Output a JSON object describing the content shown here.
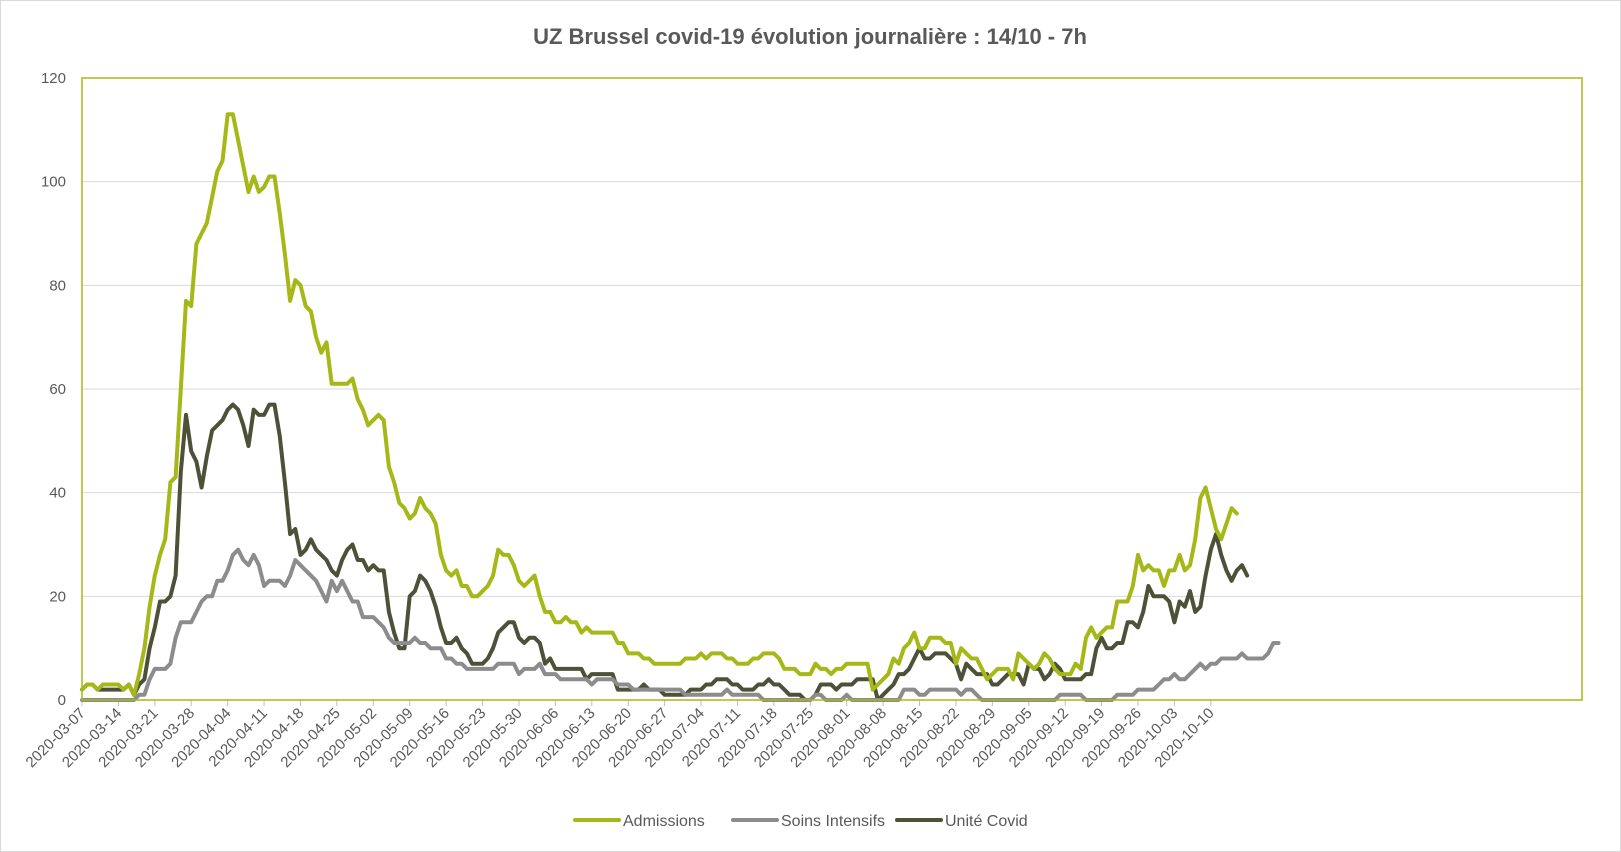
{
  "chart_data": {
    "type": "line",
    "title": "UZ Brussel covid-19 évolution journalière : 14/10 - 7h",
    "xlabel": "",
    "ylabel": "",
    "ylim": [
      0,
      120
    ],
    "yticks": [
      "0",
      "20",
      "40",
      "60",
      "80",
      "100",
      "120"
    ],
    "start_date": "2020-03-07",
    "xtick_labels": [
      "2020-03-07",
      "2020-03-14",
      "2020-03-21",
      "2020-03-28",
      "2020-04-04",
      "2020-04-11",
      "2020-04-18",
      "2020-04-25",
      "2020-05-02",
      "2020-05-09",
      "2020-05-16",
      "2020-05-23",
      "2020-05-30",
      "2020-06-06",
      "2020-06-13",
      "2020-06-20",
      "2020-06-27",
      "2020-07-04",
      "2020-07-11",
      "2020-07-18",
      "2020-07-25",
      "2020-08-01",
      "2020-08-08",
      "2020-08-15",
      "2020-08-22",
      "2020-08-29",
      "2020-09-05",
      "2020-09-12",
      "2020-09-19",
      "2020-09-26",
      "2020-10-03",
      "2020-10-10"
    ],
    "legend_position": "bottom",
    "grid": true,
    "colors": {
      "plot_border": "#a6b817",
      "grid": "#d9d9d9"
    },
    "series": [
      {
        "name": "Admissions",
        "color": "#a6b817",
        "values": [
          2,
          3,
          3,
          2,
          3,
          3,
          3,
          3,
          2,
          3,
          1,
          5,
          10,
          18,
          24,
          28,
          31,
          42,
          43,
          60,
          77,
          76,
          88,
          90,
          92,
          97,
          102,
          104,
          113,
          113,
          108,
          103,
          98,
          101,
          98,
          99,
          101,
          101,
          94,
          86,
          77,
          81,
          80,
          76,
          75,
          70,
          67,
          69,
          61,
          61,
          61,
          61,
          62,
          58,
          56,
          53,
          54,
          55,
          54,
          45,
          42,
          38,
          37,
          35,
          36,
          39,
          37,
          36,
          34,
          28,
          25,
          24,
          25,
          22,
          22,
          20,
          20,
          21,
          22,
          24,
          29,
          28,
          28,
          26,
          23,
          22,
          23,
          24,
          20,
          17,
          17,
          15,
          15,
          16,
          15,
          15,
          13,
          14,
          13,
          13,
          13,
          13,
          13,
          11,
          11,
          9,
          9,
          9,
          8,
          8,
          7,
          7,
          7,
          7,
          7,
          7,
          8,
          8,
          8,
          9,
          8,
          9,
          9,
          9,
          8,
          8,
          7,
          7,
          7,
          8,
          8,
          9,
          9,
          9,
          8,
          6,
          6,
          6,
          5,
          5,
          5,
          7,
          6,
          6,
          5,
          6,
          6,
          7,
          7,
          7,
          7,
          7,
          2,
          3,
          4,
          5,
          8,
          7,
          10,
          11,
          13,
          10,
          10,
          12,
          12,
          12,
          11,
          11,
          7,
          10,
          9,
          8,
          8,
          6,
          4,
          5,
          6,
          6,
          6,
          4,
          9,
          8,
          7,
          6,
          7,
          9,
          8,
          6,
          5,
          5,
          5,
          7,
          6,
          12,
          14,
          12,
          13,
          14,
          14,
          19,
          19,
          19,
          22,
          28,
          25,
          26,
          25,
          25,
          22,
          25,
          25,
          28,
          25,
          26,
          31,
          39,
          41,
          37,
          33,
          31,
          34,
          37,
          36
        ]
      },
      {
        "name": "Soins Intensifs",
        "color": "#8c8c8c",
        "values": [
          0,
          0,
          0,
          0,
          0,
          0,
          0,
          0,
          0,
          0,
          0,
          1,
          1,
          4,
          6,
          6,
          6,
          7,
          12,
          15,
          15,
          15,
          17,
          19,
          20,
          20,
          23,
          23,
          25,
          28,
          29,
          27,
          26,
          28,
          26,
          22,
          23,
          23,
          23,
          22,
          24,
          27,
          26,
          25,
          24,
          23,
          21,
          19,
          23,
          21,
          23,
          21,
          19,
          19,
          16,
          16,
          16,
          15,
          14,
          12,
          11,
          11,
          11,
          11,
          12,
          11,
          11,
          10,
          10,
          10,
          8,
          8,
          7,
          7,
          6,
          6,
          6,
          6,
          6,
          6,
          7,
          7,
          7,
          7,
          5,
          6,
          6,
          6,
          7,
          5,
          5,
          5,
          4,
          4,
          4,
          4,
          4,
          4,
          3,
          4,
          4,
          4,
          4,
          3,
          3,
          3,
          2,
          2,
          2,
          2,
          2,
          2,
          2,
          2,
          2,
          2,
          1,
          1,
          1,
          1,
          1,
          1,
          1,
          1,
          2,
          1,
          1,
          1,
          1,
          1,
          1,
          0,
          0,
          0,
          0,
          0,
          0,
          0,
          0,
          0,
          0,
          1,
          1,
          0,
          0,
          0,
          0,
          1,
          0,
          0,
          0,
          0,
          0,
          0,
          0,
          0,
          0,
          0,
          2,
          2,
          2,
          1,
          1,
          2,
          2,
          2,
          2,
          2,
          2,
          1,
          2,
          2,
          1,
          0,
          0,
          0,
          0,
          0,
          0,
          0,
          0,
          0,
          0,
          0,
          0,
          0,
          0,
          0,
          1,
          1,
          1,
          1,
          1,
          0,
          0,
          0,
          0,
          0,
          0,
          1,
          1,
          1,
          1,
          2,
          2,
          2,
          2,
          3,
          4,
          4,
          5,
          4,
          4,
          5,
          6,
          7,
          6,
          7,
          7,
          8,
          8,
          8,
          8,
          9,
          8,
          8,
          8,
          8,
          9,
          11,
          11
        ]
      },
      {
        "name": "Unité Covid",
        "color": "#4d5138",
        "values": [
          2,
          3,
          3,
          2,
          2,
          2,
          2,
          2,
          2,
          3,
          1,
          3,
          4,
          10,
          14,
          19,
          19,
          20,
          24,
          44,
          55,
          48,
          46,
          41,
          47,
          52,
          53,
          54,
          56,
          57,
          56,
          53,
          49,
          56,
          55,
          55,
          57,
          57,
          51,
          42,
          32,
          33,
          28,
          29,
          31,
          29,
          28,
          27,
          25,
          24,
          27,
          29,
          30,
          27,
          27,
          25,
          26,
          25,
          25,
          17,
          13,
          10,
          10,
          20,
          21,
          24,
          23,
          21,
          18,
          14,
          11,
          11,
          12,
          10,
          9,
          7,
          7,
          7,
          8,
          10,
          13,
          14,
          15,
          15,
          12,
          11,
          12,
          12,
          11,
          7,
          8,
          6,
          6,
          6,
          6,
          6,
          6,
          4,
          5,
          5,
          5,
          5,
          5,
          2,
          2,
          2,
          2,
          2,
          3,
          2,
          2,
          2,
          1,
          1,
          1,
          1,
          1,
          2,
          2,
          2,
          3,
          3,
          4,
          4,
          4,
          3,
          3,
          2,
          2,
          2,
          3,
          3,
          4,
          3,
          3,
          2,
          1,
          1,
          1,
          0,
          0,
          1,
          3,
          3,
          3,
          2,
          3,
          3,
          3,
          4,
          4,
          4,
          4,
          0,
          1,
          2,
          3,
          5,
          5,
          6,
          8,
          10,
          8,
          8,
          9,
          9,
          9,
          8,
          7,
          4,
          7,
          6,
          5,
          5,
          5,
          3,
          3,
          4,
          5,
          5,
          5,
          3,
          7,
          6,
          6,
          4,
          5,
          7,
          6,
          4,
          4,
          4,
          4,
          5,
          5,
          10,
          12,
          10,
          10,
          11,
          11,
          15,
          15,
          14,
          17,
          22,
          20,
          20,
          20,
          19,
          15,
          19,
          18,
          21,
          17,
          18,
          24,
          29,
          32,
          28,
          25,
          23,
          25,
          26,
          24
        ]
      }
    ]
  }
}
